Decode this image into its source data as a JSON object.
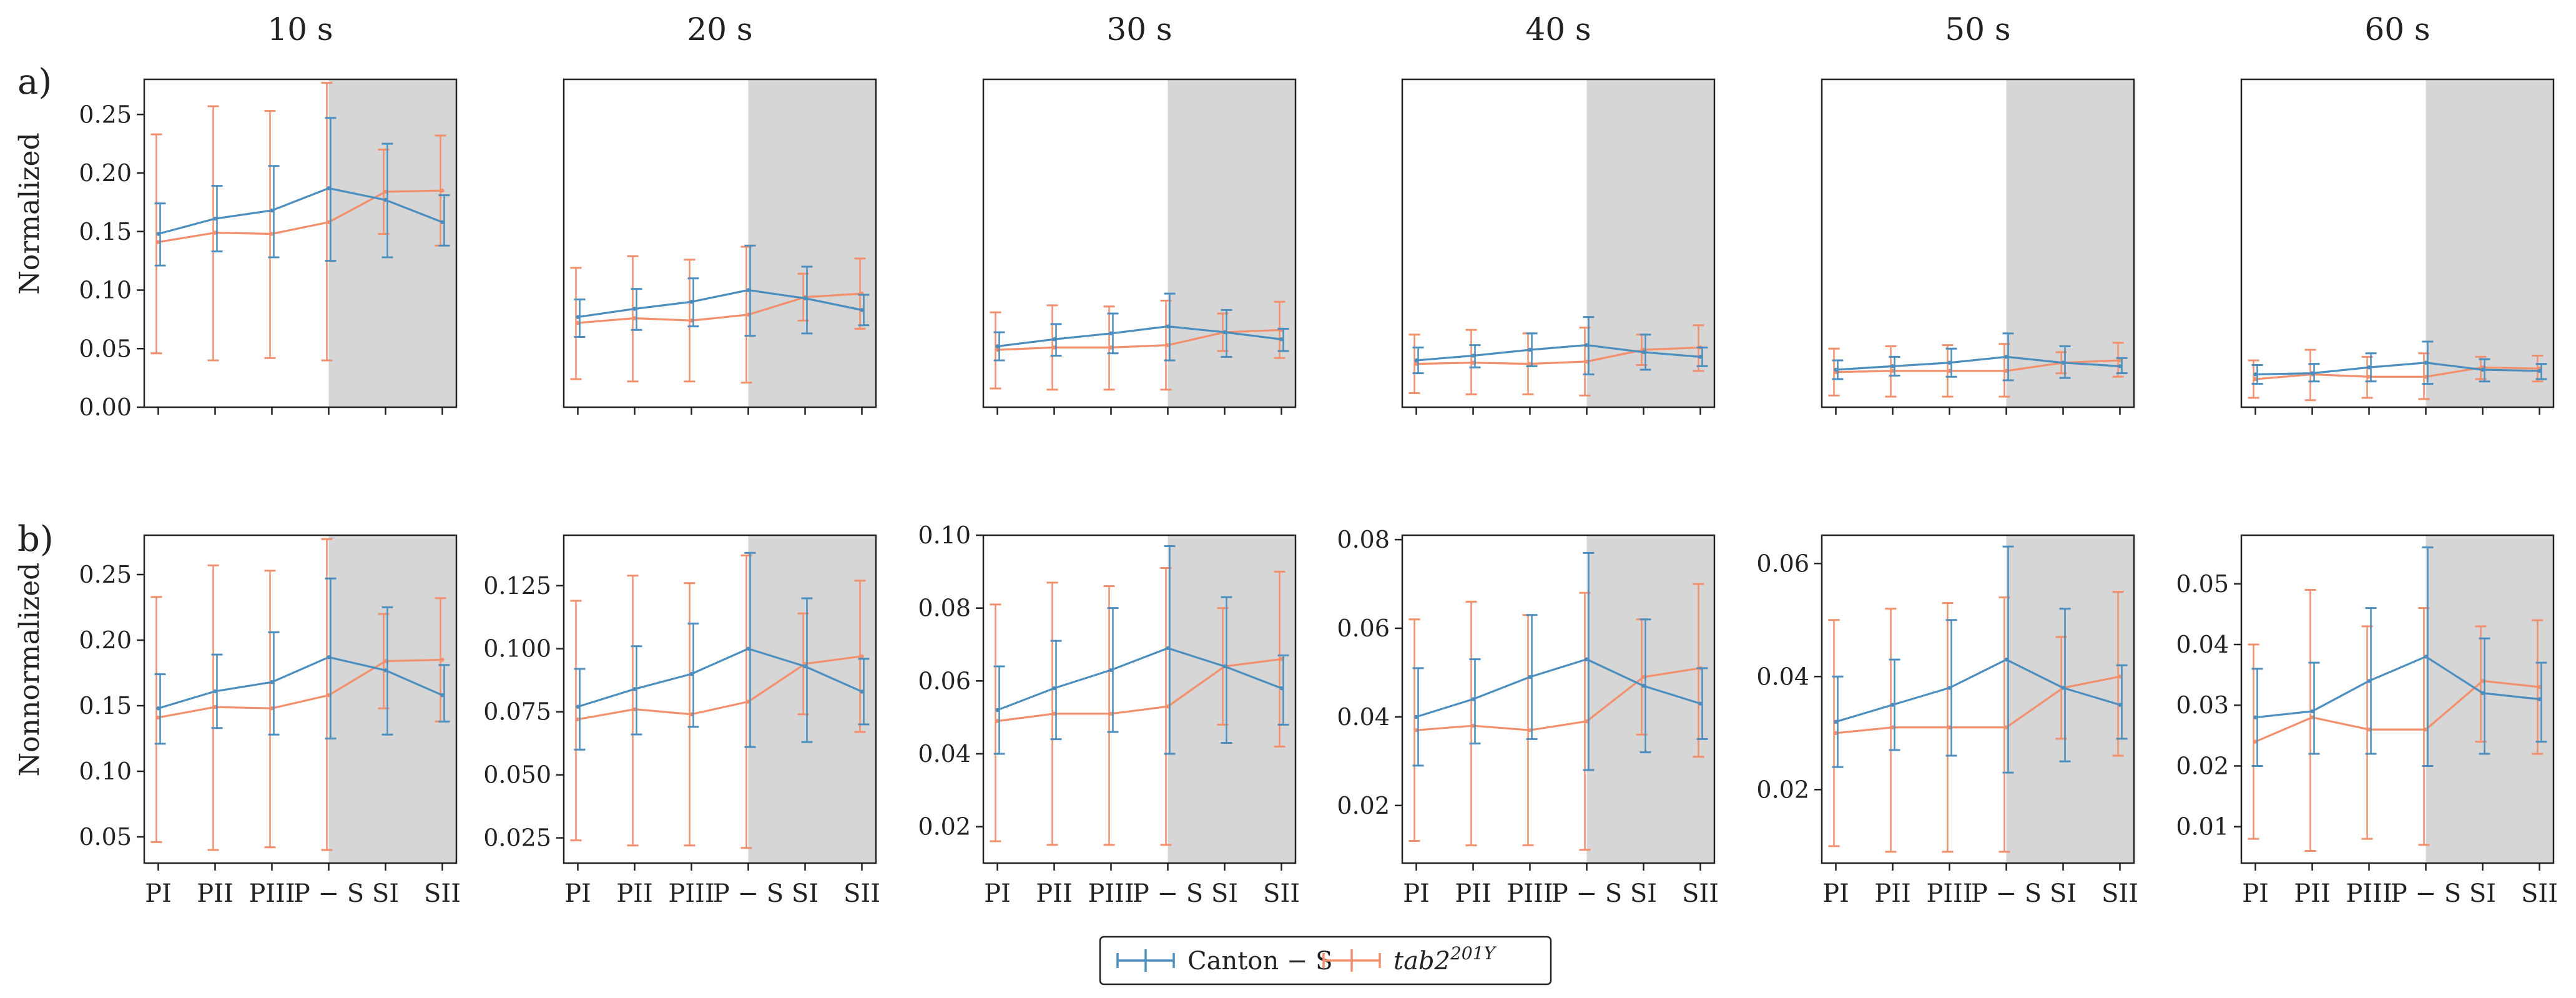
{
  "figure": {
    "row_labels": [
      "a)",
      "b)"
    ],
    "row_ylabels": [
      "Normalized",
      "Nonnormalized"
    ]
  },
  "legend": {
    "items": [
      {
        "label": "Canton − S",
        "color": "#4C8FBF"
      },
      {
        "label": "tab2",
        "sup": "201Y",
        "color": "#F2906E"
      }
    ]
  },
  "colors": {
    "canton": "#4C8FBF",
    "tab2": "#F2906E",
    "shade": "#D6D6D6"
  },
  "chart_data": [
    {
      "type": "line",
      "row": "a",
      "title": "10 s",
      "ylabel": "Normalized",
      "categories": [
        "PI",
        "PII",
        "PIII",
        "P − S",
        "SI",
        "SII"
      ],
      "ylim": [
        0,
        0.28
      ],
      "yticks": [
        0,
        0.05,
        0.1,
        0.15,
        0.2,
        0.25
      ],
      "ytick_labels": [
        "0.00",
        "0.05",
        "0.10",
        "0.15",
        "0.20",
        "0.25"
      ],
      "shaded_from": "P − S",
      "series": [
        {
          "name": "Canton − S",
          "values": [
            0.148,
            0.161,
            0.168,
            0.187,
            0.177,
            0.158
          ],
          "err_low": [
            0.121,
            0.133,
            0.128,
            0.125,
            0.128,
            0.138
          ],
          "err_high": [
            0.174,
            0.189,
            0.206,
            0.247,
            0.225,
            0.181
          ]
        },
        {
          "name": "tab2^201Y",
          "values": [
            0.141,
            0.149,
            0.148,
            0.158,
            0.184,
            0.185
          ],
          "err_low": [
            0.046,
            0.04,
            0.042,
            0.04,
            0.148,
            0.138
          ],
          "err_high": [
            0.233,
            0.257,
            0.253,
            0.277,
            0.22,
            0.232
          ]
        }
      ]
    },
    {
      "type": "line",
      "row": "a",
      "title": "20 s",
      "ylabel": "",
      "categories": [
        "PI",
        "PII",
        "PIII",
        "P − S",
        "SI",
        "SII"
      ],
      "ylim": [
        0,
        0.28
      ],
      "yticks": [],
      "ytick_labels": [],
      "shaded_from": "P − S",
      "series": [
        {
          "name": "Canton − S",
          "values": [
            0.077,
            0.084,
            0.09,
            0.1,
            0.093,
            0.083
          ],
          "err_low": [
            0.06,
            0.066,
            0.069,
            0.061,
            0.063,
            0.07
          ],
          "err_high": [
            0.092,
            0.101,
            0.11,
            0.138,
            0.12,
            0.096
          ]
        },
        {
          "name": "tab2^201Y",
          "values": [
            0.072,
            0.076,
            0.074,
            0.079,
            0.094,
            0.097
          ],
          "err_low": [
            0.024,
            0.022,
            0.022,
            0.021,
            0.074,
            0.067
          ],
          "err_high": [
            0.119,
            0.129,
            0.126,
            0.137,
            0.114,
            0.127
          ]
        }
      ]
    },
    {
      "type": "line",
      "row": "a",
      "title": "30 s",
      "ylabel": "",
      "categories": [
        "PI",
        "PII",
        "PIII",
        "P − S",
        "SI",
        "SII"
      ],
      "ylim": [
        0,
        0.28
      ],
      "yticks": [],
      "ytick_labels": [],
      "shaded_from": "P − S",
      "series": [
        {
          "name": "Canton − S",
          "values": [
            0.052,
            0.058,
            0.063,
            0.069,
            0.064,
            0.058
          ],
          "err_low": [
            0.04,
            0.044,
            0.046,
            0.04,
            0.043,
            0.048
          ],
          "err_high": [
            0.064,
            0.071,
            0.08,
            0.097,
            0.083,
            0.067
          ]
        },
        {
          "name": "tab2^201Y",
          "values": [
            0.049,
            0.051,
            0.051,
            0.053,
            0.064,
            0.066
          ],
          "err_low": [
            0.016,
            0.015,
            0.015,
            0.015,
            0.048,
            0.042
          ],
          "err_high": [
            0.081,
            0.087,
            0.086,
            0.091,
            0.08,
            0.09
          ]
        }
      ]
    },
    {
      "type": "line",
      "row": "a",
      "title": "40 s",
      "ylabel": "",
      "categories": [
        "PI",
        "PII",
        "PIII",
        "P − S",
        "SI",
        "SII"
      ],
      "ylim": [
        0,
        0.28
      ],
      "yticks": [],
      "ytick_labels": [],
      "shaded_from": "P − S",
      "series": [
        {
          "name": "Canton − S",
          "values": [
            0.04,
            0.044,
            0.049,
            0.053,
            0.047,
            0.043
          ],
          "err_low": [
            0.029,
            0.034,
            0.035,
            0.028,
            0.032,
            0.035
          ],
          "err_high": [
            0.051,
            0.053,
            0.063,
            0.077,
            0.062,
            0.051
          ]
        },
        {
          "name": "tab2^201Y",
          "values": [
            0.037,
            0.038,
            0.037,
            0.039,
            0.049,
            0.051
          ],
          "err_low": [
            0.012,
            0.011,
            0.011,
            0.01,
            0.036,
            0.031
          ],
          "err_high": [
            0.062,
            0.066,
            0.063,
            0.068,
            0.062,
            0.07
          ]
        }
      ]
    },
    {
      "type": "line",
      "row": "a",
      "title": "50 s",
      "ylabel": "",
      "categories": [
        "PI",
        "PII",
        "PIII",
        "P − S",
        "SI",
        "SII"
      ],
      "ylim": [
        0,
        0.28
      ],
      "yticks": [],
      "ytick_labels": [],
      "shaded_from": "P − S",
      "series": [
        {
          "name": "Canton − S",
          "values": [
            0.032,
            0.035,
            0.038,
            0.043,
            0.038,
            0.035
          ],
          "err_low": [
            0.024,
            0.027,
            0.026,
            0.023,
            0.025,
            0.029
          ],
          "err_high": [
            0.04,
            0.043,
            0.05,
            0.063,
            0.052,
            0.042
          ]
        },
        {
          "name": "tab2^201Y",
          "values": [
            0.03,
            0.031,
            0.031,
            0.031,
            0.038,
            0.04
          ],
          "err_low": [
            0.01,
            0.009,
            0.009,
            0.009,
            0.029,
            0.026
          ],
          "err_high": [
            0.05,
            0.052,
            0.053,
            0.054,
            0.047,
            0.055
          ]
        }
      ]
    },
    {
      "type": "line",
      "row": "a",
      "title": "60 s",
      "ylabel": "",
      "categories": [
        "PI",
        "PII",
        "PIII",
        "P − S",
        "SI",
        "SII"
      ],
      "ylim": [
        0,
        0.28
      ],
      "yticks": [],
      "ytick_labels": [],
      "shaded_from": "P − S",
      "series": [
        {
          "name": "Canton − S",
          "values": [
            0.028,
            0.029,
            0.034,
            0.038,
            0.032,
            0.031
          ],
          "err_low": [
            0.02,
            0.022,
            0.022,
            0.02,
            0.022,
            0.024
          ],
          "err_high": [
            0.036,
            0.037,
            0.046,
            0.056,
            0.041,
            0.037
          ]
        },
        {
          "name": "tab2^201Y",
          "values": [
            0.024,
            0.028,
            0.026,
            0.026,
            0.034,
            0.033
          ],
          "err_low": [
            0.008,
            0.006,
            0.008,
            0.007,
            0.024,
            0.022
          ],
          "err_high": [
            0.04,
            0.049,
            0.043,
            0.046,
            0.043,
            0.044
          ]
        }
      ]
    },
    {
      "type": "line",
      "row": "b",
      "title": "",
      "ylabel": "Nonnormalized",
      "categories": [
        "PI",
        "PII",
        "PIII",
        "P − S",
        "SI",
        "SII"
      ],
      "ylim": [
        0.03,
        0.28
      ],
      "yticks": [
        0.05,
        0.1,
        0.15,
        0.2,
        0.25
      ],
      "ytick_labels": [
        "0.05",
        "0.10",
        "0.15",
        "0.20",
        "0.25"
      ],
      "shaded_from": "P − S",
      "series": [
        {
          "name": "Canton − S",
          "values": [
            0.148,
            0.161,
            0.168,
            0.187,
            0.177,
            0.158
          ],
          "err_low": [
            0.121,
            0.133,
            0.128,
            0.125,
            0.128,
            0.138
          ],
          "err_high": [
            0.174,
            0.189,
            0.206,
            0.247,
            0.225,
            0.181
          ]
        },
        {
          "name": "tab2^201Y",
          "values": [
            0.141,
            0.149,
            0.148,
            0.158,
            0.184,
            0.185
          ],
          "err_low": [
            0.046,
            0.04,
            0.042,
            0.04,
            0.148,
            0.138
          ],
          "err_high": [
            0.233,
            0.257,
            0.253,
            0.277,
            0.22,
            0.232
          ]
        }
      ]
    },
    {
      "type": "line",
      "row": "b",
      "title": "",
      "ylabel": "",
      "categories": [
        "PI",
        "PII",
        "PIII",
        "P − S",
        "SI",
        "SII"
      ],
      "ylim": [
        0.015,
        0.145
      ],
      "yticks": [
        0.025,
        0.05,
        0.075,
        0.1,
        0.125
      ],
      "ytick_labels": [
        "0.025",
        "0.050",
        "0.075",
        "0.100",
        "0.125"
      ],
      "shaded_from": "P − S",
      "series": [
        {
          "name": "Canton − S",
          "values": [
            0.077,
            0.084,
            0.09,
            0.1,
            0.093,
            0.083
          ],
          "err_low": [
            0.06,
            0.066,
            0.069,
            0.061,
            0.063,
            0.07
          ],
          "err_high": [
            0.092,
            0.101,
            0.11,
            0.138,
            0.12,
            0.096
          ]
        },
        {
          "name": "tab2^201Y",
          "values": [
            0.072,
            0.076,
            0.074,
            0.079,
            0.094,
            0.097
          ],
          "err_low": [
            0.024,
            0.022,
            0.022,
            0.021,
            0.074,
            0.067
          ],
          "err_high": [
            0.119,
            0.129,
            0.126,
            0.137,
            0.114,
            0.127
          ]
        }
      ]
    },
    {
      "type": "line",
      "row": "b",
      "title": "",
      "ylabel": "",
      "categories": [
        "PI",
        "PII",
        "PIII",
        "P − S",
        "SI",
        "SII"
      ],
      "ylim": [
        0.01,
        0.1
      ],
      "yticks": [
        0.02,
        0.04,
        0.06,
        0.08,
        0.1
      ],
      "ytick_labels": [
        "0.02",
        "0.04",
        "0.06",
        "0.08",
        "0.10"
      ],
      "shaded_from": "P − S",
      "series": [
        {
          "name": "Canton − S",
          "values": [
            0.052,
            0.058,
            0.063,
            0.069,
            0.064,
            0.058
          ],
          "err_low": [
            0.04,
            0.044,
            0.046,
            0.04,
            0.043,
            0.048
          ],
          "err_high": [
            0.064,
            0.071,
            0.08,
            0.097,
            0.083,
            0.067
          ]
        },
        {
          "name": "tab2^201Y",
          "values": [
            0.049,
            0.051,
            0.051,
            0.053,
            0.064,
            0.066
          ],
          "err_low": [
            0.016,
            0.015,
            0.015,
            0.015,
            0.048,
            0.042
          ],
          "err_high": [
            0.081,
            0.087,
            0.086,
            0.091,
            0.08,
            0.09
          ]
        }
      ]
    },
    {
      "type": "line",
      "row": "b",
      "title": "",
      "ylabel": "",
      "categories": [
        "PI",
        "PII",
        "PIII",
        "P − S",
        "SI",
        "SII"
      ],
      "ylim": [
        0.007,
        0.081
      ],
      "yticks": [
        0.02,
        0.04,
        0.06,
        0.08
      ],
      "ytick_labels": [
        "0.02",
        "0.04",
        "0.06",
        "0.08"
      ],
      "shaded_from": "P − S",
      "series": [
        {
          "name": "Canton − S",
          "values": [
            0.04,
            0.044,
            0.049,
            0.053,
            0.047,
            0.043
          ],
          "err_low": [
            0.029,
            0.034,
            0.035,
            0.028,
            0.032,
            0.035
          ],
          "err_high": [
            0.051,
            0.053,
            0.063,
            0.077,
            0.062,
            0.051
          ]
        },
        {
          "name": "tab2^201Y",
          "values": [
            0.037,
            0.038,
            0.037,
            0.039,
            0.049,
            0.051
          ],
          "err_low": [
            0.012,
            0.011,
            0.011,
            0.01,
            0.036,
            0.031
          ],
          "err_high": [
            0.062,
            0.066,
            0.063,
            0.068,
            0.062,
            0.07
          ]
        }
      ]
    },
    {
      "type": "line",
      "row": "b",
      "title": "",
      "ylabel": "",
      "categories": [
        "PI",
        "PII",
        "PIII",
        "P − S",
        "SI",
        "SII"
      ],
      "ylim": [
        0.007,
        0.065
      ],
      "yticks": [
        0.02,
        0.04,
        0.06
      ],
      "ytick_labels": [
        "0.02",
        "0.04",
        "0.06"
      ],
      "shaded_from": "P − S",
      "series": [
        {
          "name": "Canton − S",
          "values": [
            0.032,
            0.035,
            0.038,
            0.043,
            0.038,
            0.035
          ],
          "err_low": [
            0.024,
            0.027,
            0.026,
            0.023,
            0.025,
            0.029
          ],
          "err_high": [
            0.04,
            0.043,
            0.05,
            0.063,
            0.052,
            0.042
          ]
        },
        {
          "name": "tab2^201Y",
          "values": [
            0.03,
            0.031,
            0.031,
            0.031,
            0.038,
            0.04
          ],
          "err_low": [
            0.01,
            0.009,
            0.009,
            0.009,
            0.029,
            0.026
          ],
          "err_high": [
            0.05,
            0.052,
            0.053,
            0.054,
            0.047,
            0.055
          ]
        }
      ]
    },
    {
      "type": "line",
      "row": "b",
      "title": "",
      "ylabel": "",
      "categories": [
        "PI",
        "PII",
        "PIII",
        "P − S",
        "SI",
        "SII"
      ],
      "ylim": [
        0.004,
        0.058
      ],
      "yticks": [
        0.01,
        0.02,
        0.03,
        0.04,
        0.05
      ],
      "ytick_labels": [
        "0.01",
        "0.02",
        "0.03",
        "0.04",
        "0.05"
      ],
      "shaded_from": "P − S",
      "series": [
        {
          "name": "Canton − S",
          "values": [
            0.028,
            0.029,
            0.034,
            0.038,
            0.032,
            0.031
          ],
          "err_low": [
            0.02,
            0.022,
            0.022,
            0.02,
            0.022,
            0.024
          ],
          "err_high": [
            0.036,
            0.037,
            0.046,
            0.056,
            0.041,
            0.037
          ]
        },
        {
          "name": "tab2^201Y",
          "values": [
            0.024,
            0.028,
            0.026,
            0.026,
            0.034,
            0.033
          ],
          "err_low": [
            0.008,
            0.006,
            0.008,
            0.007,
            0.024,
            0.022
          ],
          "err_high": [
            0.04,
            0.049,
            0.043,
            0.046,
            0.043,
            0.044
          ]
        }
      ]
    }
  ]
}
